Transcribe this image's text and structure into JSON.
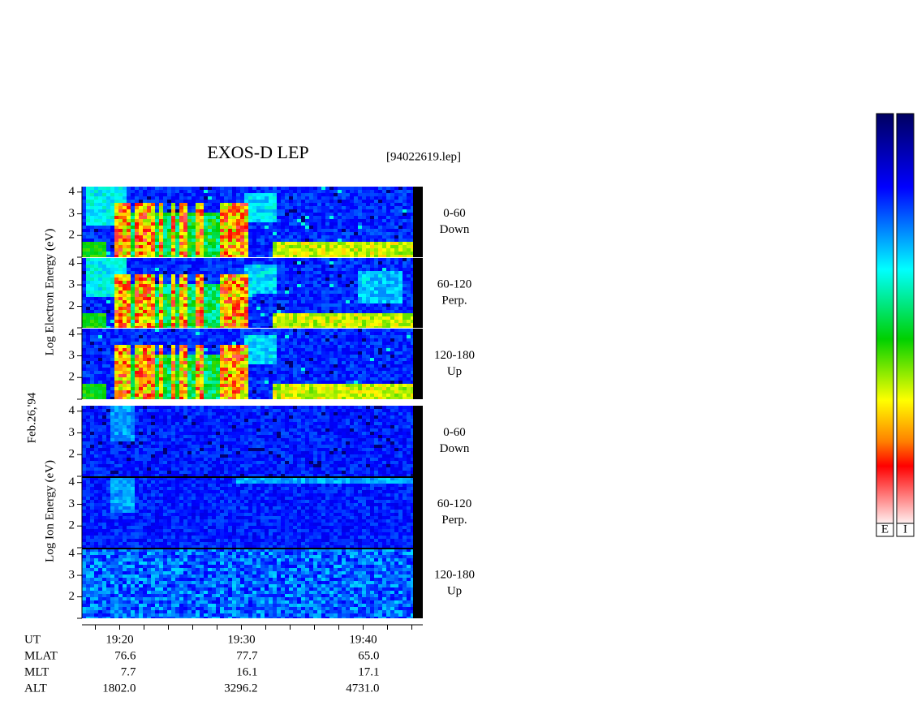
{
  "chart_data": {
    "type": "spectrogram",
    "title": "EXOS-D LEP",
    "file_label": "[94022619.lep]",
    "date_label": "Feb.26,'94",
    "groups": [
      {
        "ylabel": "Log  Electron  Energy (eV)",
        "panels": [
          {
            "angle": "0-60",
            "direction": "Down"
          },
          {
            "angle": "60-120",
            "direction": "Perp."
          },
          {
            "angle": "120-180",
            "direction": "Up"
          }
        ]
      },
      {
        "ylabel": "Log  Ion  Energy (eV)",
        "panels": [
          {
            "angle": "0-60",
            "direction": "Down"
          },
          {
            "angle": "60-120",
            "direction": "Perp."
          },
          {
            "angle": "120-180",
            "direction": "Up"
          }
        ]
      }
    ],
    "ylim": [
      1,
      4.25
    ],
    "yticks": [
      2,
      3,
      4
    ],
    "xlim": [
      1156.9,
      1184.9
    ],
    "xticks": [
      {
        "value": 1160,
        "label": "19:20"
      },
      {
        "value": 1170,
        "label": "19:30"
      },
      {
        "value": 1180,
        "label": "19:40"
      }
    ],
    "xminorticks": [
      1158,
      1162,
      1164,
      1166,
      1168,
      1172,
      1174,
      1176,
      1178,
      1182,
      1184
    ],
    "x_row_label": "UT",
    "orbit_rows": [
      {
        "label": "MLAT",
        "values": [
          "76.6",
          "77.7",
          "65.0"
        ]
      },
      {
        "label": "MLT",
        "values": [
          "7.7",
          "16.1",
          "17.1"
        ]
      },
      {
        "label": "ALT",
        "values": [
          "1802.0",
          "3296.2",
          "4731.0"
        ]
      }
    ],
    "colorbar_labels": [
      "E",
      "I"
    ]
  }
}
